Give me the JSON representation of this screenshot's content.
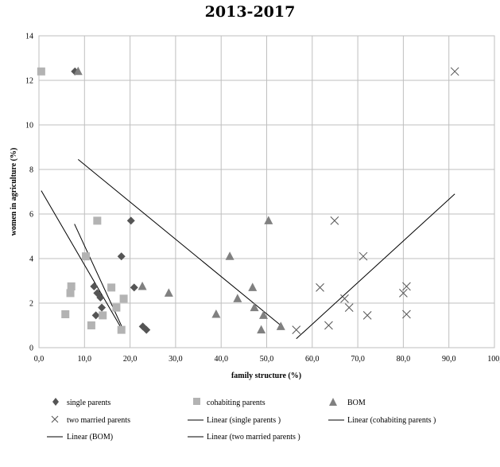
{
  "chart_data": {
    "type": "scatter",
    "title": "2013-2017",
    "xlabel": "family structure (%)",
    "ylabel": "women in agriculture (%)",
    "xlim": [
      0,
      100
    ],
    "ylim": [
      0,
      14
    ],
    "x_ticks": [
      "0,0",
      "10,0",
      "20,0",
      "30,0",
      "40,0",
      "50,0",
      "60,0",
      "70,0",
      "80,0",
      "90,0",
      "100,"
    ],
    "y_ticks": [
      "0",
      "2",
      "4",
      "6",
      "8",
      "10",
      "12",
      "14"
    ],
    "grid": true,
    "legend_position": "bottom",
    "series": [
      {
        "name": "single parents",
        "marker": "diamond",
        "color": "#555555",
        "points": [
          [
            7.9,
            12.4
          ],
          [
            18.1,
            4.1
          ],
          [
            20.2,
            5.7
          ],
          [
            12.1,
            2.75
          ],
          [
            12.8,
            2.45
          ],
          [
            13.5,
            2.25
          ],
          [
            20.9,
            2.7
          ],
          [
            13.8,
            1.8
          ],
          [
            12.5,
            1.45
          ],
          [
            22.8,
            0.95
          ],
          [
            23.6,
            0.8
          ]
        ]
      },
      {
        "name": "cohabiting parents",
        "marker": "square",
        "color": "#b3b3b3",
        "points": [
          [
            0.5,
            12.4
          ],
          [
            12.8,
            5.7
          ],
          [
            10.3,
            4.1
          ],
          [
            7.1,
            2.75
          ],
          [
            6.9,
            2.45
          ],
          [
            15.9,
            2.7
          ],
          [
            18.6,
            2.2
          ],
          [
            17.0,
            1.8
          ],
          [
            5.8,
            1.5
          ],
          [
            14.0,
            1.45
          ],
          [
            11.5,
            1.0
          ],
          [
            18.1,
            0.8
          ]
        ]
      },
      {
        "name": "BOM",
        "marker": "triangle",
        "color": "#808080",
        "points": [
          [
            8.6,
            12.4
          ],
          [
            50.4,
            5.7
          ],
          [
            41.9,
            4.1
          ],
          [
            22.7,
            2.75
          ],
          [
            28.5,
            2.45
          ],
          [
            46.9,
            2.7
          ],
          [
            43.6,
            2.2
          ],
          [
            47.3,
            1.8
          ],
          [
            38.9,
            1.5
          ],
          [
            49.3,
            1.45
          ],
          [
            48.8,
            0.8
          ],
          [
            53.1,
            0.95
          ]
        ]
      },
      {
        "name": "two married parents",
        "marker": "x",
        "color": "#555555",
        "points": [
          [
            91.3,
            12.4
          ],
          [
            64.9,
            5.7
          ],
          [
            71.2,
            4.1
          ],
          [
            61.7,
            2.7
          ],
          [
            80.7,
            2.75
          ],
          [
            80.0,
            2.45
          ],
          [
            67.1,
            2.2
          ],
          [
            68.1,
            1.8
          ],
          [
            72.1,
            1.45
          ],
          [
            80.7,
            1.5
          ],
          [
            56.5,
            0.8
          ],
          [
            63.6,
            1.0
          ]
        ]
      }
    ],
    "trendlines": [
      {
        "name": "Linear (single parents )",
        "color": "#000000",
        "x": [
          7.8,
          18.3
        ],
        "y": [
          5.55,
          0.9
        ]
      },
      {
        "name": "Linear (cohabiting parents )",
        "color": "#000000",
        "x": [
          0.5,
          18.3
        ],
        "y": [
          7.05,
          0.8
        ]
      },
      {
        "name": "Linear (BOM)",
        "color": "#000000",
        "x": [
          8.6,
          53.1
        ],
        "y": [
          8.45,
          1.0
        ]
      },
      {
        "name": "Linear (two married parents )",
        "color": "#000000",
        "x": [
          56.5,
          91.3
        ],
        "y": [
          0.4,
          6.9
        ]
      }
    ]
  },
  "legend": {
    "single_parents": "single parents",
    "cohabiting_parents": "cohabiting parents",
    "bom": "BOM",
    "two_married_parents": "two married parents",
    "linear_single": "Linear (single parents )",
    "linear_cohabiting": "Linear (cohabiting parents )",
    "linear_bom": "Linear (BOM)",
    "linear_two_married": "Linear (two married parents )"
  }
}
